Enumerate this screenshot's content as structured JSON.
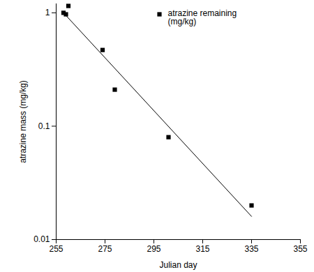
{
  "chart_data": {
    "type": "scatter",
    "x_label": "Julian day",
    "y_label": "atrazine mass (mg/kg)",
    "xlim": [
      255,
      355
    ],
    "xticks": [
      255,
      275,
      295,
      315,
      335,
      355
    ],
    "ylim": [
      0.01,
      1.2
    ],
    "yticks": [
      0.01,
      0.1,
      1
    ],
    "log": "y",
    "grid": false,
    "legend": "top-right",
    "series": [
      {
        "name": "atrazine remaining (mg/kg)",
        "type": "scatter",
        "marker": "square",
        "color": "#000000",
        "x": [
          258,
          259,
          260,
          274,
          279,
          301,
          335
        ],
        "values": [
          1.0,
          0.97,
          1.15,
          0.47,
          0.21,
          0.08,
          0.02
        ]
      },
      {
        "type": "line",
        "line_style": "solid",
        "color": "#000000",
        "x": [
          258,
          335
        ],
        "values": [
          1.0,
          0.016
        ]
      }
    ]
  }
}
